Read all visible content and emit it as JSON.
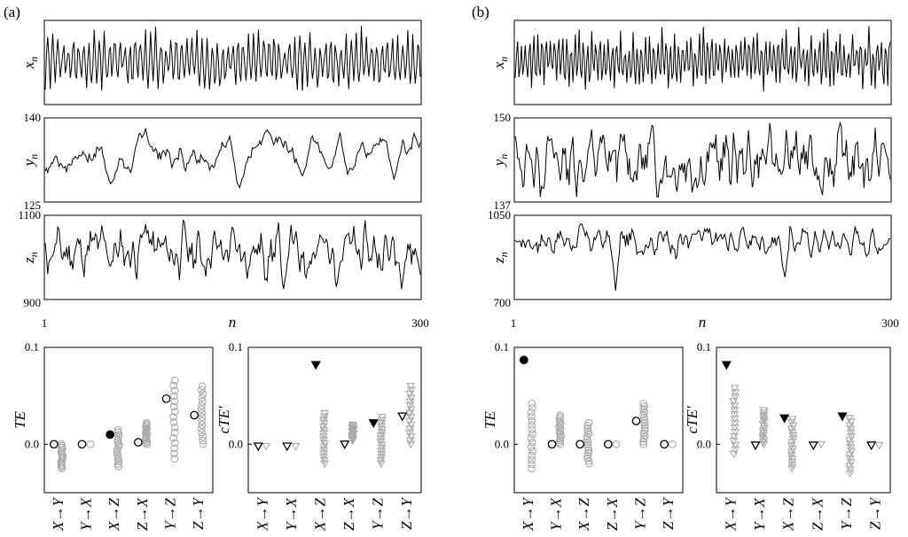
{
  "chart_data": [
    {
      "panel": "(a)",
      "type": "line",
      "x_axis": {
        "label": "n",
        "ticks": [
          "1",
          "300"
        ],
        "range": [
          1,
          300
        ]
      },
      "series": [
        {
          "name": "x_n",
          "ylabel": "x",
          "sub": "n",
          "ticks": [
            "",
            ""
          ],
          "range": [
            0,
            1
          ],
          "pattern": "oscillation",
          "seed": 3
        },
        {
          "name": "y_n",
          "ylabel": "y",
          "sub": "n",
          "ticks": [
            "140",
            "125"
          ],
          "range": [
            125,
            140
          ],
          "pattern": "wander_y",
          "seed": 7
        },
        {
          "name": "z_n",
          "ylabel": "z",
          "sub": "n",
          "ticks": [
            "1100",
            "900"
          ],
          "range": [
            900,
            1100
          ],
          "pattern": "wander_z",
          "seed": 11
        }
      ]
    },
    {
      "panel": "(b)",
      "type": "line",
      "x_axis": {
        "label": "n",
        "ticks": [
          "1",
          "300"
        ],
        "range": [
          1,
          300
        ]
      },
      "series": [
        {
          "name": "x_n",
          "ylabel": "x",
          "sub": "n",
          "ticks": [
            "",
            ""
          ],
          "range": [
            0,
            1
          ],
          "pattern": "oscillation_fast",
          "seed": 5
        },
        {
          "name": "y_n",
          "ylabel": "y",
          "sub": "n",
          "ticks": [
            "150",
            "137"
          ],
          "range": [
            137,
            150
          ],
          "pattern": "noisy",
          "seed": 13
        },
        {
          "name": "z_n",
          "ylabel": "z",
          "sub": "n",
          "ticks": [
            "1050",
            "700"
          ],
          "range": [
            700,
            1050
          ],
          "pattern": "spiky",
          "seed": 17
        }
      ]
    },
    {
      "type": "scatter",
      "ylabel": "TE",
      "ylim": [
        -0.05,
        0.1
      ],
      "yticks": [
        "0.1",
        "0.0"
      ],
      "categories": [
        "X→Y",
        "Y→X",
        "X→Z",
        "Z→X",
        "Y→Z",
        "Z→Y"
      ],
      "marker": "circle",
      "observed": [
        0.0,
        0.0,
        0.01,
        0.002,
        0.047,
        0.03
      ],
      "significant": [
        false,
        false,
        true,
        false,
        false,
        false
      ],
      "surrogate_spread": [
        [
          -0.025,
          0.0
        ],
        [
          0.0,
          0.0
        ],
        [
          -0.023,
          0.015
        ],
        [
          0.0,
          0.022
        ],
        [
          -0.015,
          0.066
        ],
        [
          0.0,
          0.06
        ]
      ]
    },
    {
      "type": "scatter",
      "ylabel": "cTE'",
      "ylim": [
        -0.05,
        0.1
      ],
      "yticks": [
        "0.1",
        "0.0"
      ],
      "categories": [
        "X→Y",
        "Y→X",
        "X→Z",
        "Z→X",
        "Y→Z",
        "Z→Y"
      ],
      "marker": "triangle",
      "observed": [
        -0.002,
        -0.002,
        0.082,
        0.0,
        0.022,
        0.029
      ],
      "significant": [
        false,
        false,
        true,
        false,
        true,
        false
      ],
      "surrogate_spread": [
        [
          -0.002,
          -0.002
        ],
        [
          -0.002,
          -0.002
        ],
        [
          -0.02,
          0.032
        ],
        [
          0.004,
          0.02
        ],
        [
          -0.02,
          0.028
        ],
        [
          0.0,
          0.06
        ]
      ]
    },
    {
      "type": "scatter",
      "ylabel": "TE",
      "ylim": [
        -0.05,
        0.1
      ],
      "yticks": [
        "0.1",
        "0.0"
      ],
      "categories": [
        "X→Y",
        "Y→X",
        "X→Z",
        "Z→X",
        "Y→Z",
        "Z→Y"
      ],
      "marker": "circle",
      "observed": [
        0.087,
        0.0,
        0.0,
        0.0,
        0.024,
        0.0
      ],
      "significant": [
        true,
        false,
        false,
        false,
        false,
        false
      ],
      "surrogate_spread": [
        [
          -0.025,
          0.042
        ],
        [
          0.0,
          0.03
        ],
        [
          -0.02,
          0.022
        ],
        [
          0.0,
          0.001
        ],
        [
          0.0,
          0.042
        ],
        [
          0.0,
          0.0
        ]
      ]
    },
    {
      "type": "scatter",
      "ylabel": "cTE'",
      "ylim": [
        -0.05,
        0.1
      ],
      "yticks": [
        "0.1",
        "0.0"
      ],
      "categories": [
        "X→Y",
        "Y→X",
        "X→Z",
        "Z→X",
        "Y→Z",
        "Z→Y"
      ],
      "marker": "triangle",
      "observed": [
        0.082,
        -0.001,
        0.027,
        -0.001,
        0.029,
        -0.001
      ],
      "significant": [
        true,
        false,
        true,
        false,
        true,
        false
      ],
      "surrogate_spread": [
        [
          -0.01,
          0.058
        ],
        [
          0.0,
          0.035
        ],
        [
          -0.025,
          0.026
        ],
        [
          0.0,
          0.004
        ],
        [
          -0.03,
          0.027
        ],
        [
          -0.001,
          -0.001
        ]
      ]
    }
  ]
}
